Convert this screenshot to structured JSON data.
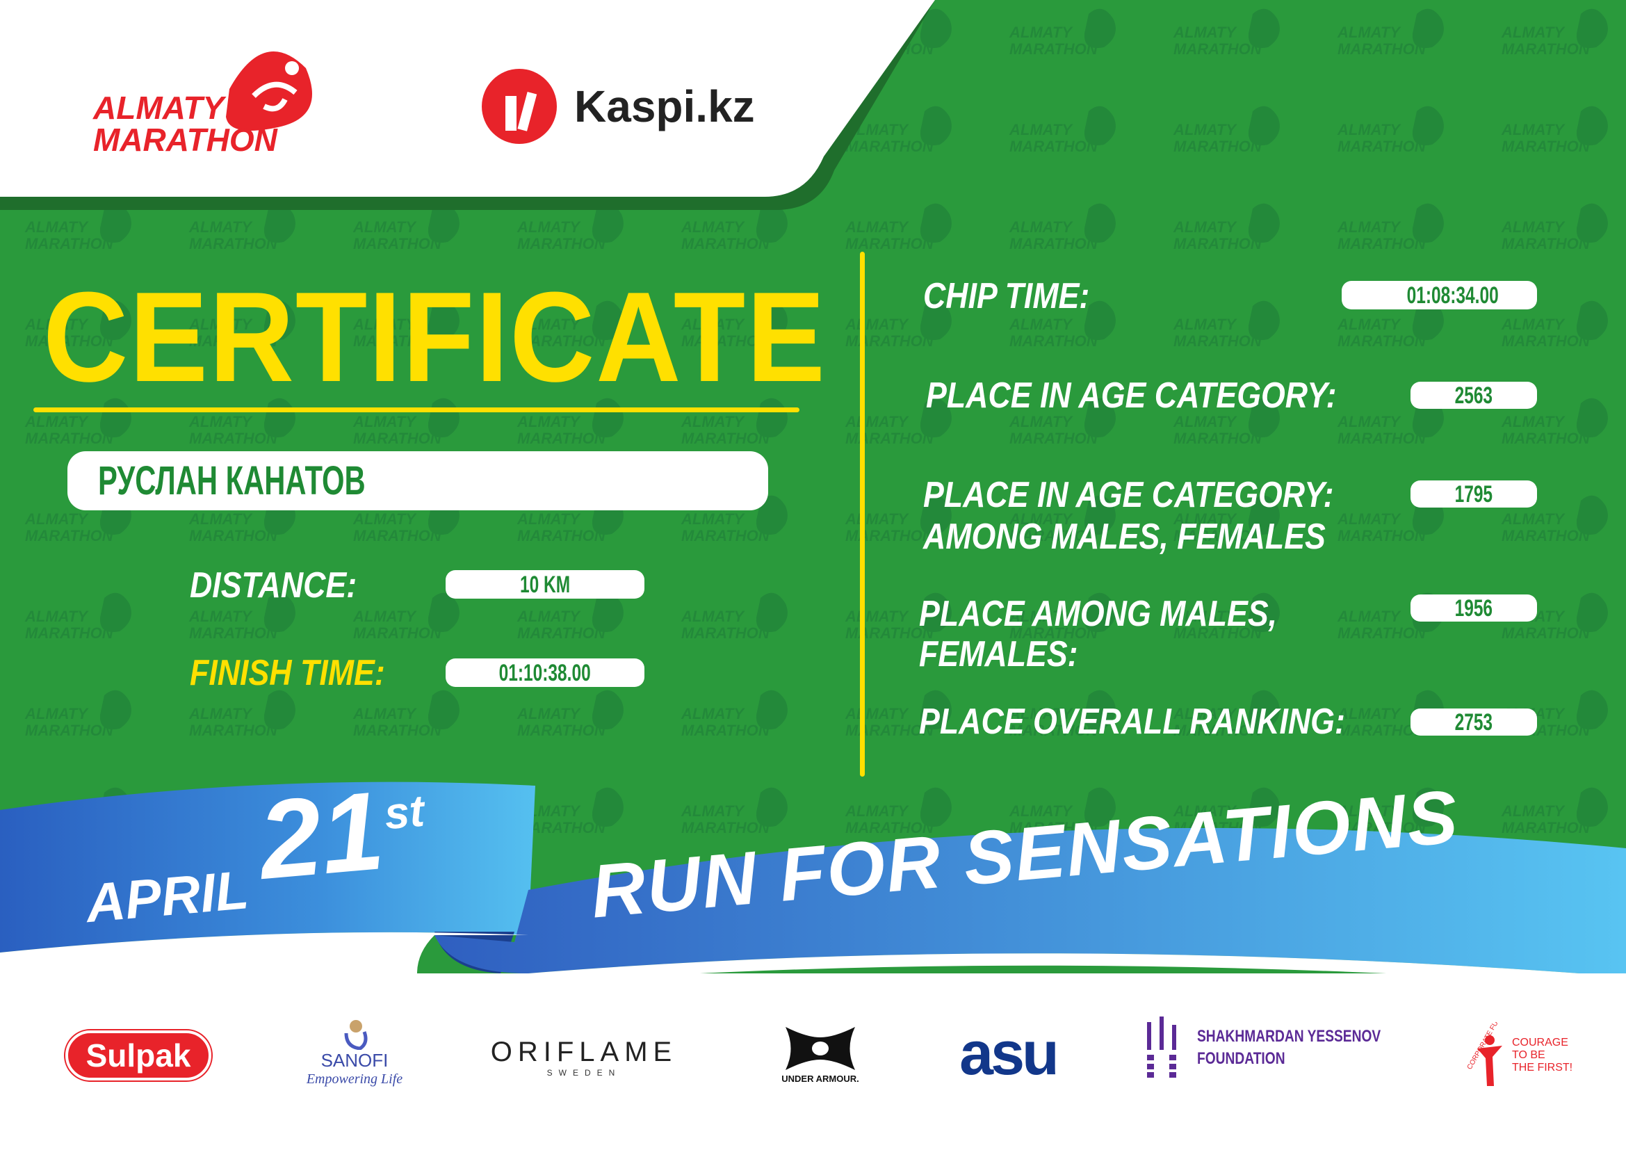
{
  "header": {
    "event_logo_text": [
      "ALMATY",
      "MARATHON"
    ],
    "sponsor_logo_text": "Kaspi.kz"
  },
  "title": "CERTIFICATE",
  "participant_name": "РУСЛАН КАНАТОВ",
  "left_fields": [
    {
      "label": "DISTANCE:",
      "value": "10 KM"
    },
    {
      "label": "FINISH TIME:",
      "value": "01:10:38.00"
    }
  ],
  "right_fields": [
    {
      "label": "CHIP TIME:",
      "value": "01:08:34.00"
    },
    {
      "label": "PLACE IN AGE CATEGORY:",
      "value": "2563"
    },
    {
      "label": "PLACE IN AGE CATEGORY:",
      "label2": "AMONG MALES, FEMALES",
      "value": "1795"
    },
    {
      "label": "PLACE AMONG MALES,",
      "label2": "FEMALES:",
      "value": "1956"
    },
    {
      "label": "PLACE OVERALL RANKING:",
      "value": "2753"
    }
  ],
  "banner": {
    "month": "APRIL",
    "day": "21",
    "suffix": "st",
    "slogan": "RUN FOR SENSATIONS"
  },
  "sponsors": {
    "sulpak": "Sulpak",
    "sanofi": "SANOFI",
    "sanofi_tagline": "Empowering Life",
    "oriflame": "ORIFLAME",
    "oriflame_sub": "SWEDEN",
    "under_armour": "UNDER ARMOUR.",
    "asu": "asu",
    "yessenov": [
      "SHAKHMARDAN YESSENOV",
      "FOUNDATION"
    ],
    "courage": [
      "COURAGE",
      "TO BE",
      "THE FIRST!"
    ],
    "courage_arc": "CORPORATE FUND"
  },
  "colors": {
    "green": "#2a9a3c",
    "yellow": "#ffe000",
    "red": "#e8232a",
    "blue": "#2f7fd0"
  }
}
